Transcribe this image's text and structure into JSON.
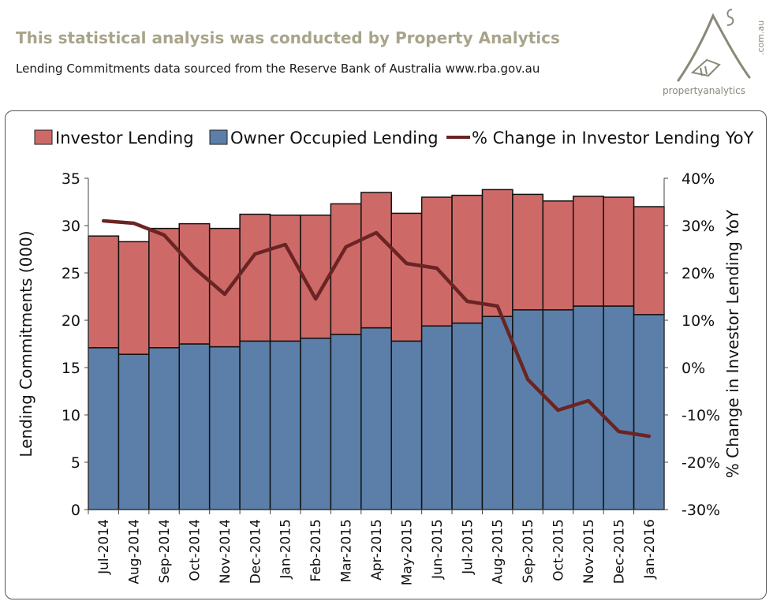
{
  "header": {
    "title": "This statistical analysis was conducted  by Property Analytics",
    "subtitle": "Lending Commitments data sourced from the Reserve Bank of Australia www.rba.gov.au"
  },
  "logo": {
    "name": "propertyanalytics",
    "suffix": ".com.au",
    "color": "#8a8878"
  },
  "colors": {
    "investor": "#cd6a68",
    "owner": "#5b7fa8",
    "line": "#6b2424"
  },
  "chart_data": {
    "type": "bar",
    "stacked": true,
    "title": "",
    "categories": [
      "Jul-2014",
      "Aug-2014",
      "Sep-2014",
      "Oct-2014",
      "Nov-2014",
      "Dec-2014",
      "Jan-2015",
      "Feb-2015",
      "Mar-2015",
      "Apr-2015",
      "May-2015",
      "Jun-2015",
      "Jul-2015",
      "Aug-2015",
      "Sep-2015",
      "Oct-2015",
      "Nov-2015",
      "Dec-2015",
      "Jan-2016"
    ],
    "series": [
      {
        "name": "Owner Occupied Lending",
        "type": "bar",
        "values": [
          17.1,
          16.4,
          17.1,
          17.5,
          17.2,
          17.8,
          17.8,
          18.1,
          18.5,
          19.2,
          17.8,
          19.4,
          19.7,
          20.4,
          21.1,
          21.1,
          21.5,
          21.5,
          20.6
        ]
      },
      {
        "name": "Investor Lending",
        "type": "bar",
        "values": [
          11.8,
          11.9,
          12.6,
          12.7,
          12.5,
          13.4,
          13.3,
          13.0,
          13.8,
          14.3,
          13.5,
          13.6,
          13.5,
          13.4,
          12.2,
          11.5,
          11.6,
          11.5,
          11.4
        ]
      },
      {
        "name": "% Change in Investor Lending YoY",
        "type": "line",
        "axis": "right",
        "values": [
          31.0,
          30.5,
          28.0,
          21.0,
          15.5,
          24.0,
          26.0,
          14.5,
          25.5,
          28.5,
          22.0,
          21.0,
          14.0,
          13.0,
          -2.5,
          -9.0,
          -7.0,
          -13.5,
          -14.5
        ]
      }
    ],
    "legend": [
      "Investor Lending",
      "Owner Occupied Lending",
      "% Change in Investor Lending YoY"
    ],
    "legend_position": "top",
    "ylabel": "Lending Commitments (000)",
    "y2label": "% Change in Investor Lending YoY",
    "ylim": [
      0,
      35
    ],
    "yticks": [
      0,
      5,
      10,
      15,
      20,
      25,
      30,
      35
    ],
    "y2lim": [
      -30,
      40
    ],
    "y2ticks": [
      "-30%",
      "-20%",
      "-10%",
      "0%",
      "10%",
      "20%",
      "30%",
      "40%"
    ],
    "grid": false
  }
}
